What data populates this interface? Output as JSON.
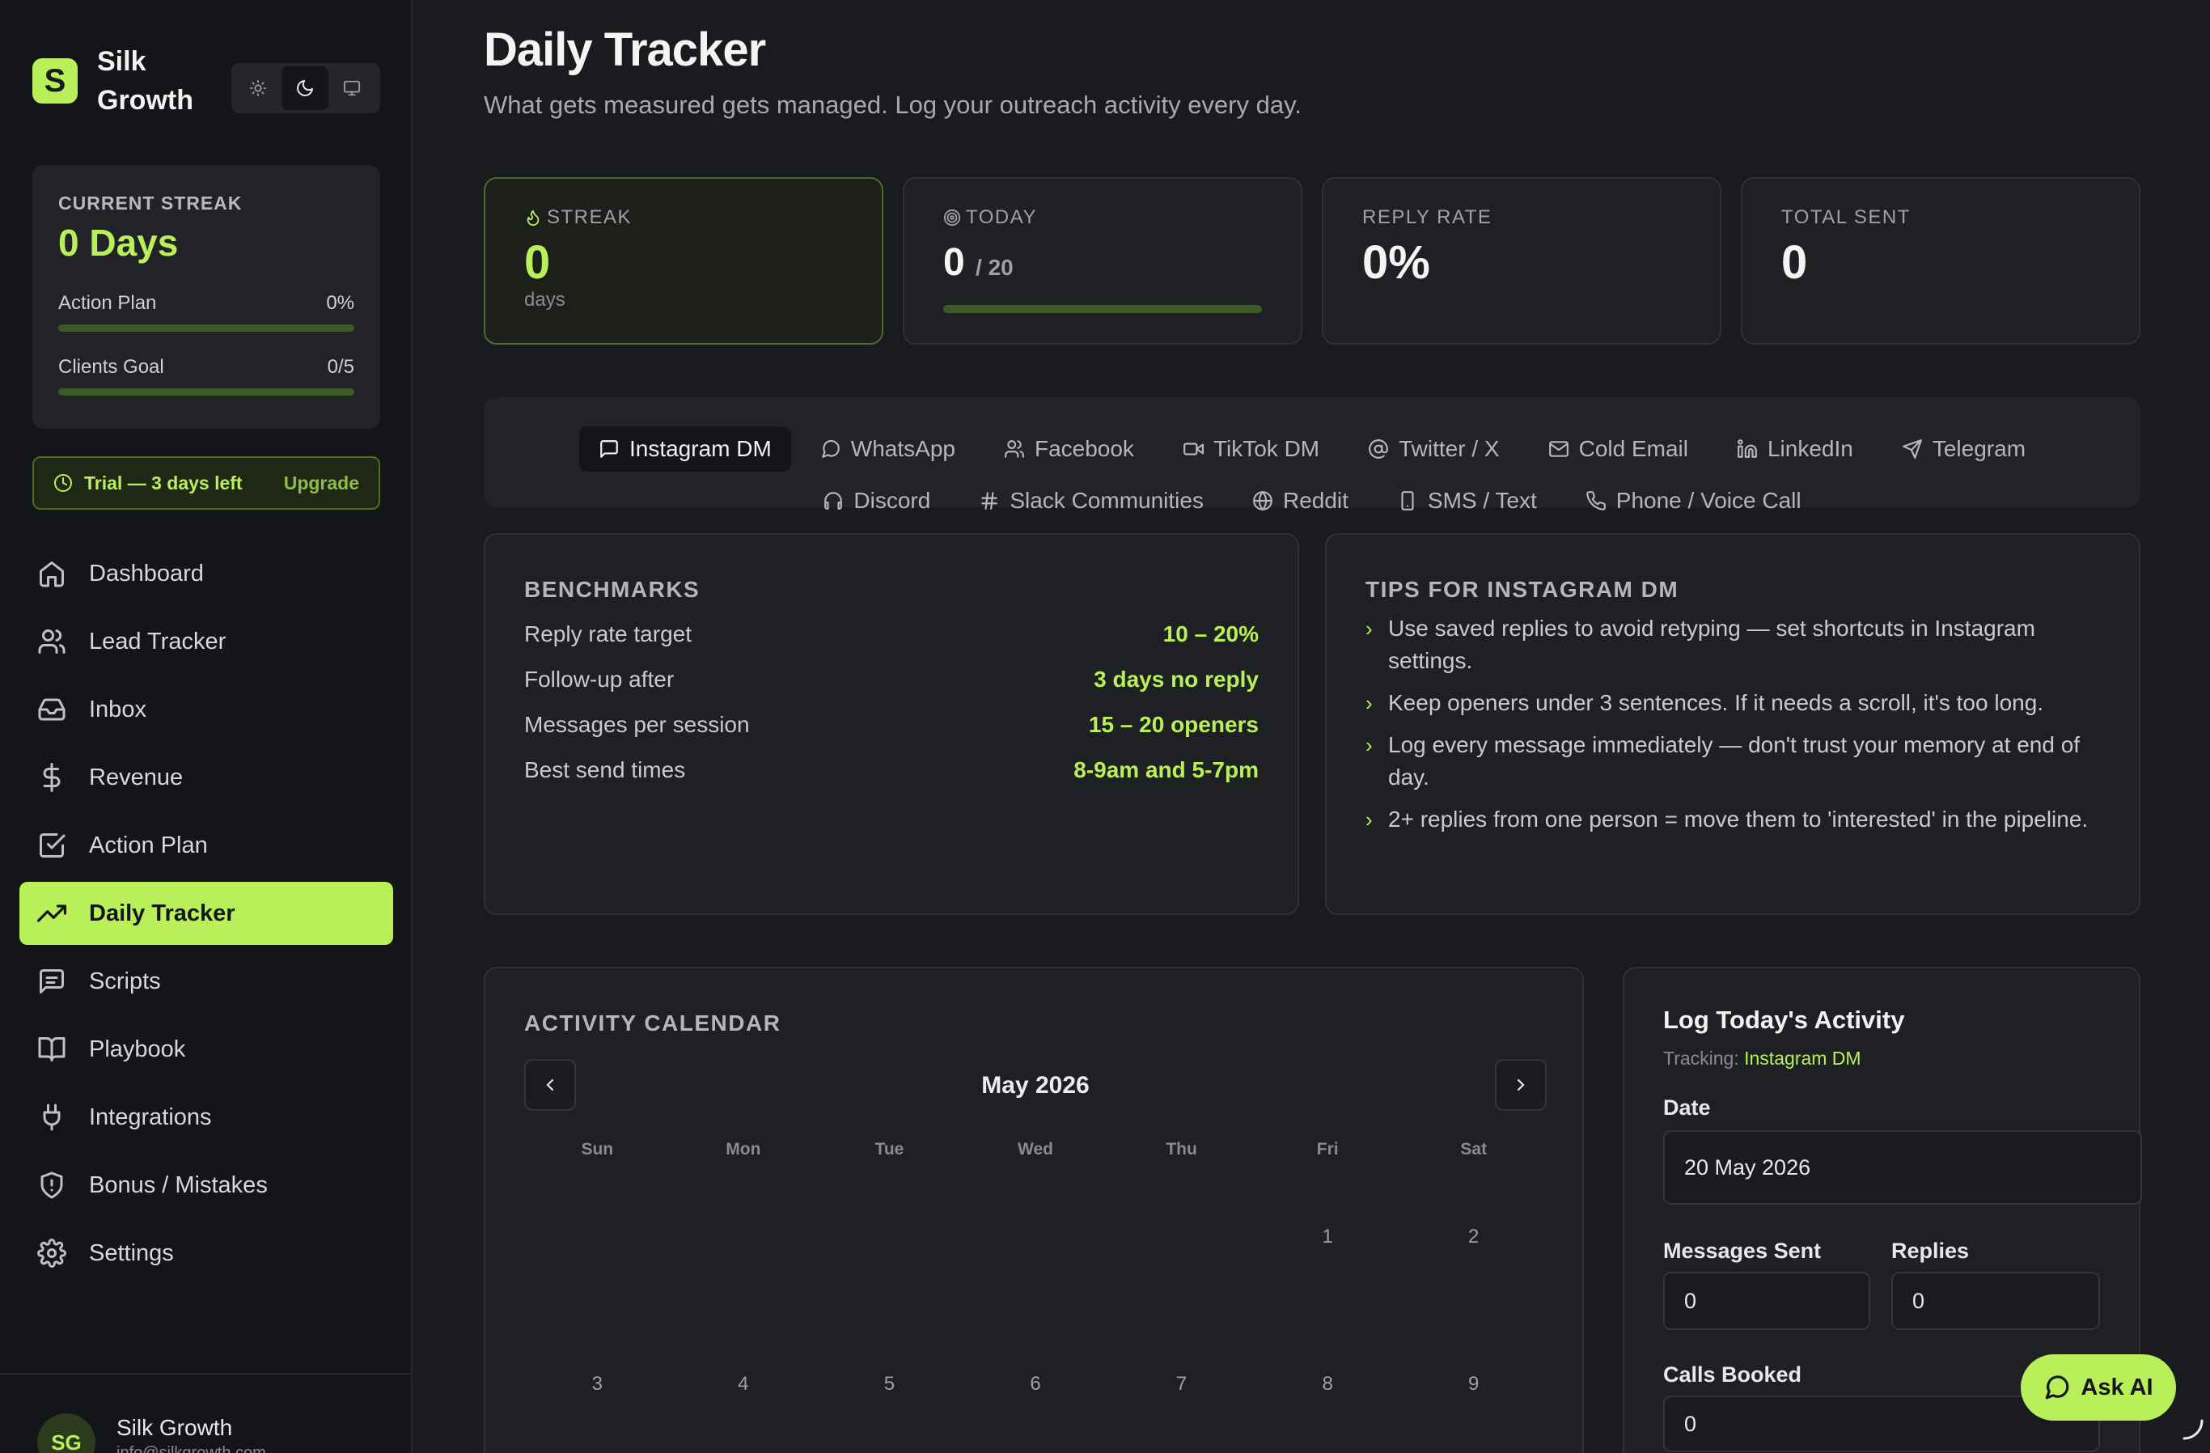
{
  "brand": {
    "logo": "S",
    "name": "Silk Growth"
  },
  "theme_toggle": {
    "options": [
      "sun-icon",
      "moon-icon",
      "monitor-icon"
    ],
    "active": "moon-icon"
  },
  "streak_card": {
    "label": "CURRENT STREAK",
    "value": "0 Days",
    "action_plan_label": "Action Plan",
    "action_plan_value": "0%",
    "action_plan_progress": 0,
    "clients_goal_label": "Clients Goal",
    "clients_goal_value": "0/5",
    "clients_goal_progress": 0
  },
  "trial": {
    "text": "Trial — 3 days left",
    "upgrade": "Upgrade"
  },
  "nav": [
    {
      "label": "Dashboard",
      "icon": "home-icon"
    },
    {
      "label": "Lead Tracker",
      "icon": "users-icon"
    },
    {
      "label": "Inbox",
      "icon": "inbox-icon"
    },
    {
      "label": "Revenue",
      "icon": "dollar-icon"
    },
    {
      "label": "Action Plan",
      "icon": "check-square-icon"
    },
    {
      "label": "Daily Tracker",
      "icon": "trending-up-icon",
      "active": true
    },
    {
      "label": "Scripts",
      "icon": "message-square-icon"
    },
    {
      "label": "Playbook",
      "icon": "book-open-icon"
    },
    {
      "label": "Integrations",
      "icon": "plug-icon"
    },
    {
      "label": "Bonus / Mistakes",
      "icon": "shield-alert-icon"
    },
    {
      "label": "Settings",
      "icon": "gear-icon"
    }
  ],
  "user": {
    "initials": "SG",
    "name": "Silk Growth",
    "email": "info@silkgrowth.com"
  },
  "page": {
    "title": "Daily Tracker",
    "subtitle": "What gets measured gets managed. Log your outreach activity every day."
  },
  "stats": {
    "streak": {
      "label": "STREAK",
      "value": "0",
      "unit": "days",
      "icon": "flame-icon"
    },
    "today": {
      "label": "TODAY",
      "value": "0",
      "denominator": "/ 20",
      "progress": 0,
      "icon": "target-icon"
    },
    "reply_rate": {
      "label": "REPLY RATE",
      "value": "0%"
    },
    "total_sent": {
      "label": "TOTAL SENT",
      "value": "0"
    }
  },
  "channels": {
    "row1": [
      {
        "label": "Instagram DM",
        "icon": "message-square-icon",
        "active": true
      },
      {
        "label": "WhatsApp",
        "icon": "message-circle-icon"
      },
      {
        "label": "Facebook",
        "icon": "users-icon"
      },
      {
        "label": "TikTok DM",
        "icon": "video-icon"
      },
      {
        "label": "Twitter / X",
        "icon": "at-sign-icon"
      },
      {
        "label": "Cold Email",
        "icon": "mail-icon"
      },
      {
        "label": "LinkedIn",
        "icon": "linkedin-icon"
      },
      {
        "label": "Telegram",
        "icon": "send-icon"
      }
    ],
    "row2": [
      {
        "label": "Discord",
        "icon": "headphones-icon"
      },
      {
        "label": "Slack Communities",
        "icon": "hash-icon"
      },
      {
        "label": "Reddit",
        "icon": "globe-icon"
      },
      {
        "label": "SMS / Text",
        "icon": "smartphone-icon"
      },
      {
        "label": "Phone / Voice Call",
        "icon": "phone-icon"
      }
    ]
  },
  "benchmarks": {
    "title": "BENCHMARKS",
    "rows": [
      {
        "label": "Reply rate target",
        "value": "10 – 20%"
      },
      {
        "label": "Follow-up after",
        "value": "3 days no reply"
      },
      {
        "label": "Messages per session",
        "value": "15 – 20 openers"
      },
      {
        "label": "Best send times",
        "value": "8-9am and 5-7pm"
      }
    ]
  },
  "tips": {
    "title": "TIPS FOR INSTAGRAM DM",
    "items": [
      "Use saved replies to avoid retyping — set shortcuts in Instagram settings.",
      "Keep openers under 3 sentences. If it needs a scroll, it's too long.",
      "Log every message immediately — don't trust your memory at end of day.",
      "2+ replies from one person = move them to 'interested' in the pipeline."
    ]
  },
  "calendar": {
    "title": "ACTIVITY CALENDAR",
    "month": "May 2026",
    "weekdays": [
      "Sun",
      "Mon",
      "Tue",
      "Wed",
      "Thu",
      "Fri",
      "Sat"
    ],
    "days": [
      "",
      "",
      "",
      "",
      "",
      "1",
      "2",
      "3",
      "4",
      "5",
      "6",
      "7",
      "8",
      "9"
    ]
  },
  "log": {
    "title": "Log Today's Activity",
    "tracking_label": "Tracking:",
    "tracking_value": "Instagram DM",
    "date_label": "Date",
    "date_value": "20 May 2026",
    "messages_label": "Messages Sent",
    "messages_value": "0",
    "replies_label": "Replies",
    "replies_value": "0",
    "calls_label": "Calls Booked",
    "calls_value": "0"
  },
  "ask_ai": {
    "label": "Ask AI",
    "icon": "chat-icon"
  },
  "colors": {
    "accent": "#b9f05a",
    "background": "#1a1b1e",
    "sidebar": "#141518"
  }
}
